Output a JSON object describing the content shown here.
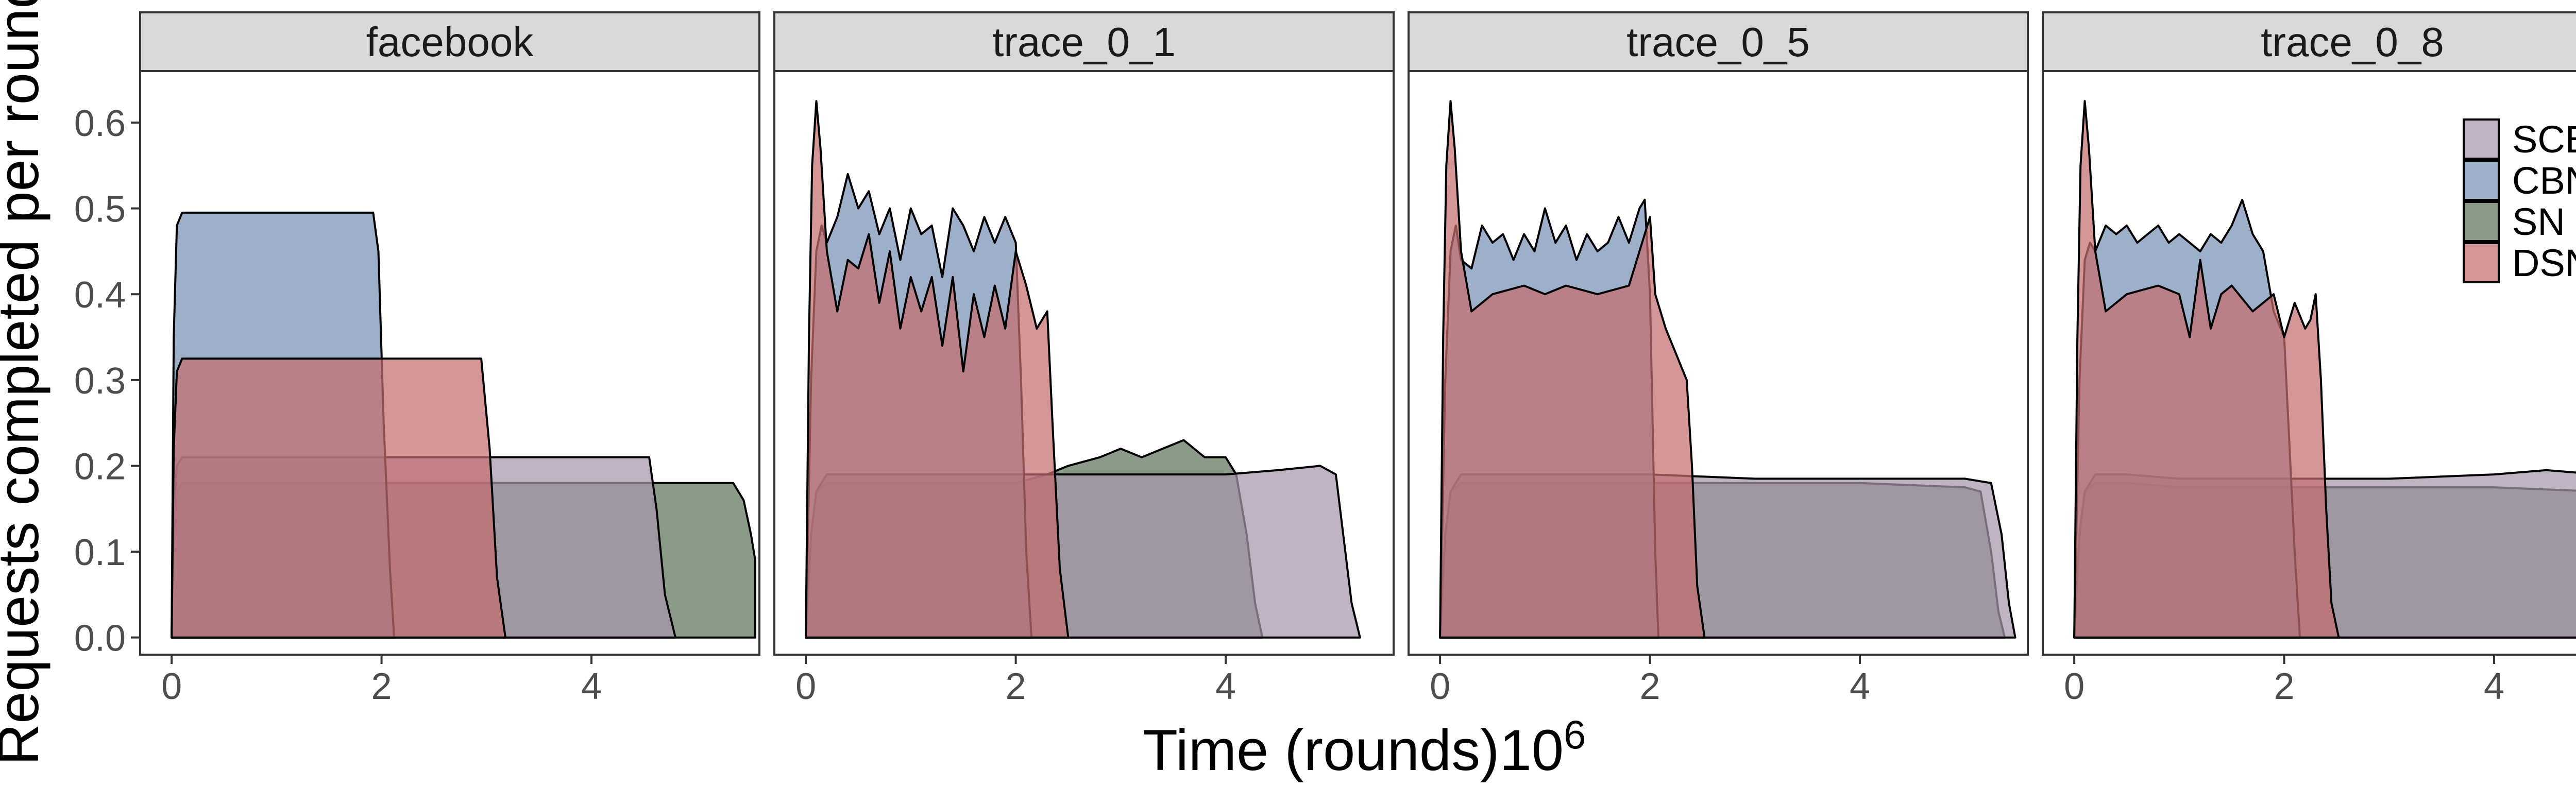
{
  "figure": {
    "ylabel": "Requests completed per round",
    "xlabel_main": "Time (rounds)10",
    "xlabel_exp": "6"
  },
  "legend": {
    "placement": "top-right",
    "items": [
      {
        "name": "SCB",
        "color": "#A896AC"
      },
      {
        "name": "CBN",
        "color": "#7790B4"
      },
      {
        "name": "SN",
        "color": "#5D7459"
      },
      {
        "name": "DSN",
        "color": "#C46E6E"
      }
    ]
  },
  "chart_data": [
    {
      "type": "area",
      "title": "facebook",
      "xlabel": "Time (rounds)10^6",
      "ylabel": "Requests completed per round",
      "xlim": [
        -0.3,
        5.6
      ],
      "ylim": [
        -0.02,
        0.66
      ],
      "x_ticks": [
        0,
        2,
        4
      ],
      "y_ticks": [
        0.0,
        0.1,
        0.2,
        0.3,
        0.4,
        0.5,
        0.6
      ],
      "y_tick_labels": [
        "0.0",
        "0.1",
        "0.2",
        "0.3",
        "0.4",
        "0.5",
        "0.6"
      ],
      "grid": false,
      "series": [
        {
          "name": "SCB",
          "x": [
            0,
            0.02,
            0.05,
            0.1,
            2,
            3,
            4,
            4.55,
            4.62,
            4.7,
            4.8
          ],
          "y": [
            0,
            0.14,
            0.2,
            0.21,
            0.21,
            0.21,
            0.21,
            0.21,
            0.15,
            0.05,
            0
          ]
        },
        {
          "name": "CBN",
          "x": [
            0,
            0.02,
            0.05,
            0.1,
            1,
            1.92,
            1.97,
            2.02,
            2.08,
            2.12
          ],
          "y": [
            0,
            0.35,
            0.48,
            0.495,
            0.495,
            0.495,
            0.45,
            0.25,
            0.08,
            0
          ]
        },
        {
          "name": "SN",
          "x": [
            0,
            0.02,
            0.05,
            0.1,
            2,
            4,
            5.35,
            5.45,
            5.52,
            5.56,
            5.56
          ],
          "y": [
            0,
            0.12,
            0.17,
            0.18,
            0.18,
            0.18,
            0.18,
            0.16,
            0.12,
            0.09,
            0
          ]
        },
        {
          "name": "DSN",
          "x": [
            0,
            0.02,
            0.05,
            0.1,
            1,
            2,
            2.95,
            3.03,
            3.1,
            3.18
          ],
          "y": [
            0,
            0.22,
            0.31,
            0.325,
            0.325,
            0.325,
            0.325,
            0.22,
            0.07,
            0
          ]
        }
      ]
    },
    {
      "type": "area",
      "title": "trace_0_1",
      "xlabel": "Time (rounds)10^6",
      "ylabel": "Requests completed per round",
      "xlim": [
        -0.3,
        5.6
      ],
      "ylim": [
        -0.02,
        0.66
      ],
      "x_ticks": [
        0,
        2,
        4
      ],
      "y_ticks": [
        0.0,
        0.1,
        0.2,
        0.3,
        0.4,
        0.5,
        0.6
      ],
      "grid": false,
      "series": [
        {
          "name": "SCB",
          "x": [
            0,
            0.05,
            0.1,
            0.2,
            0.5,
            1,
            1.5,
            2,
            2.5,
            3,
            3.5,
            4,
            4.5,
            4.9,
            5.05,
            5.12,
            5.2,
            5.28
          ],
          "y": [
            0,
            0.12,
            0.17,
            0.19,
            0.19,
            0.19,
            0.19,
            0.19,
            0.19,
            0.19,
            0.19,
            0.19,
            0.195,
            0.2,
            0.19,
            0.12,
            0.04,
            0
          ]
        },
        {
          "name": "CBN",
          "x": [
            0,
            0.05,
            0.1,
            0.15,
            0.2,
            0.3,
            0.4,
            0.5,
            0.6,
            0.7,
            0.8,
            0.9,
            1,
            1.1,
            1.2,
            1.3,
            1.4,
            1.5,
            1.6,
            1.7,
            1.8,
            1.9,
            2,
            2.05,
            2.1,
            2.15
          ],
          "y": [
            0,
            0.3,
            0.45,
            0.48,
            0.46,
            0.49,
            0.54,
            0.5,
            0.52,
            0.47,
            0.5,
            0.44,
            0.5,
            0.47,
            0.48,
            0.42,
            0.5,
            0.48,
            0.45,
            0.49,
            0.46,
            0.49,
            0.46,
            0.3,
            0.1,
            0
          ]
        },
        {
          "name": "SN",
          "x": [
            0,
            0.05,
            0.1,
            0.2,
            0.5,
            1,
            1.5,
            2,
            2.3,
            2.5,
            2.8,
            3,
            3.2,
            3.4,
            3.6,
            3.8,
            4,
            4.1,
            4.2,
            4.28,
            4.35
          ],
          "y": [
            0,
            0.12,
            0.17,
            0.18,
            0.18,
            0.18,
            0.18,
            0.18,
            0.19,
            0.2,
            0.21,
            0.22,
            0.21,
            0.22,
            0.23,
            0.21,
            0.21,
            0.19,
            0.12,
            0.04,
            0
          ]
        },
        {
          "name": "DSN",
          "x": [
            0,
            0.03,
            0.06,
            0.1,
            0.14,
            0.2,
            0.3,
            0.4,
            0.5,
            0.6,
            0.7,
            0.8,
            0.9,
            1,
            1.1,
            1.2,
            1.3,
            1.4,
            1.5,
            1.6,
            1.7,
            1.8,
            1.9,
            2,
            2.1,
            2.2,
            2.3,
            2.35,
            2.42,
            2.5
          ],
          "y": [
            0,
            0.35,
            0.55,
            0.625,
            0.57,
            0.45,
            0.38,
            0.44,
            0.43,
            0.47,
            0.39,
            0.45,
            0.36,
            0.42,
            0.38,
            0.42,
            0.34,
            0.42,
            0.31,
            0.4,
            0.35,
            0.41,
            0.36,
            0.45,
            0.41,
            0.36,
            0.38,
            0.25,
            0.08,
            0
          ]
        }
      ]
    },
    {
      "type": "area",
      "title": "trace_0_5",
      "xlabel": "Time (rounds)10^6",
      "ylabel": "Requests completed per round",
      "xlim": [
        -0.3,
        5.6
      ],
      "ylim": [
        -0.02,
        0.66
      ],
      "x_ticks": [
        0,
        2,
        4
      ],
      "y_ticks": [
        0.0,
        0.1,
        0.2,
        0.3,
        0.4,
        0.5,
        0.6
      ],
      "grid": false,
      "series": [
        {
          "name": "SCB",
          "x": [
            0,
            0.05,
            0.1,
            0.2,
            0.5,
            1,
            2,
            3,
            4,
            5,
            5.25,
            5.35,
            5.42,
            5.48
          ],
          "y": [
            0,
            0.12,
            0.17,
            0.19,
            0.19,
            0.19,
            0.19,
            0.185,
            0.185,
            0.185,
            0.18,
            0.12,
            0.04,
            0
          ]
        },
        {
          "name": "CBN",
          "x": [
            0,
            0.05,
            0.1,
            0.15,
            0.2,
            0.3,
            0.4,
            0.5,
            0.6,
            0.7,
            0.8,
            0.9,
            1,
            1.1,
            1.2,
            1.3,
            1.4,
            1.5,
            1.6,
            1.7,
            1.8,
            1.9,
            1.95,
            2,
            2.05,
            2.08
          ],
          "y": [
            0,
            0.3,
            0.45,
            0.48,
            0.44,
            0.43,
            0.48,
            0.46,
            0.47,
            0.44,
            0.47,
            0.45,
            0.5,
            0.46,
            0.48,
            0.44,
            0.47,
            0.45,
            0.46,
            0.49,
            0.46,
            0.5,
            0.51,
            0.4,
            0.1,
            0
          ]
        },
        {
          "name": "SN",
          "x": [
            0,
            0.05,
            0.1,
            0.2,
            0.5,
            1,
            2,
            3,
            4,
            5,
            5.15,
            5.25,
            5.32,
            5.38
          ],
          "y": [
            0,
            0.12,
            0.17,
            0.18,
            0.18,
            0.18,
            0.18,
            0.18,
            0.18,
            0.175,
            0.17,
            0.1,
            0.03,
            0
          ]
        },
        {
          "name": "DSN",
          "x": [
            0,
            0.03,
            0.06,
            0.1,
            0.14,
            0.2,
            0.3,
            0.5,
            0.8,
            1,
            1.2,
            1.5,
            1.8,
            2,
            2.05,
            2.15,
            2.25,
            2.35,
            2.4,
            2.45,
            2.52
          ],
          "y": [
            0,
            0.35,
            0.55,
            0.625,
            0.57,
            0.45,
            0.38,
            0.4,
            0.41,
            0.4,
            0.41,
            0.4,
            0.41,
            0.49,
            0.4,
            0.36,
            0.33,
            0.3,
            0.2,
            0.06,
            0
          ]
        }
      ]
    },
    {
      "type": "area",
      "title": "trace_0_8",
      "xlabel": "Time (rounds)10^6",
      "ylabel": "Requests completed per round",
      "xlim": [
        -0.3,
        5.6
      ],
      "ylim": [
        -0.02,
        0.66
      ],
      "x_ticks": [
        0,
        2,
        4
      ],
      "y_ticks": [
        0.0,
        0.1,
        0.2,
        0.3,
        0.4,
        0.5,
        0.6
      ],
      "grid": false,
      "series": [
        {
          "name": "SCB",
          "x": [
            0,
            0.05,
            0.1,
            0.2,
            0.5,
            1,
            2,
            3,
            4,
            4.5,
            5,
            5.25,
            5.35,
            5.42,
            5.48
          ],
          "y": [
            0,
            0.12,
            0.17,
            0.19,
            0.19,
            0.185,
            0.185,
            0.185,
            0.19,
            0.195,
            0.19,
            0.18,
            0.12,
            0.04,
            0
          ]
        },
        {
          "name": "CBN",
          "x": [
            0,
            0.05,
            0.1,
            0.15,
            0.2,
            0.3,
            0.4,
            0.5,
            0.6,
            0.7,
            0.8,
            0.9,
            1,
            1.1,
            1.2,
            1.3,
            1.4,
            1.5,
            1.6,
            1.7,
            1.8,
            1.9,
            2,
            2.1,
            2.15
          ],
          "y": [
            0,
            0.3,
            0.44,
            0.46,
            0.45,
            0.48,
            0.47,
            0.48,
            0.46,
            0.47,
            0.48,
            0.46,
            0.47,
            0.46,
            0.45,
            0.47,
            0.46,
            0.48,
            0.51,
            0.47,
            0.45,
            0.38,
            0.35,
            0.1,
            0
          ]
        },
        {
          "name": "SN",
          "x": [
            0,
            0.05,
            0.1,
            0.2,
            0.5,
            1,
            2,
            3,
            4,
            5,
            5.2,
            5.3,
            5.38,
            5.45
          ],
          "y": [
            0,
            0.12,
            0.17,
            0.18,
            0.18,
            0.175,
            0.175,
            0.175,
            0.175,
            0.17,
            0.165,
            0.1,
            0.03,
            0
          ]
        },
        {
          "name": "DSN",
          "x": [
            0,
            0.03,
            0.06,
            0.1,
            0.14,
            0.2,
            0.3,
            0.5,
            0.8,
            1,
            1.1,
            1.2,
            1.3,
            1.4,
            1.5,
            1.7,
            1.9,
            2,
            2.1,
            2.2,
            2.25,
            2.3,
            2.35,
            2.4,
            2.45,
            2.52
          ],
          "y": [
            0,
            0.35,
            0.55,
            0.625,
            0.57,
            0.45,
            0.38,
            0.4,
            0.41,
            0.4,
            0.35,
            0.44,
            0.36,
            0.4,
            0.41,
            0.38,
            0.4,
            0.35,
            0.39,
            0.36,
            0.37,
            0.4,
            0.3,
            0.15,
            0.04,
            0
          ]
        }
      ]
    }
  ]
}
